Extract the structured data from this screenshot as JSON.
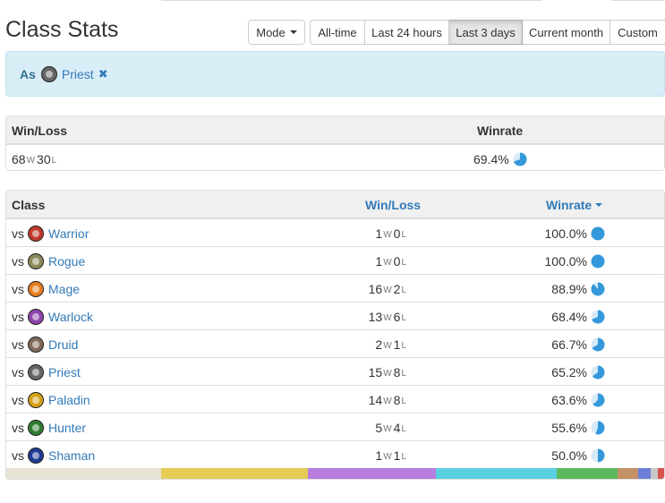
{
  "page_title": "Class Stats",
  "mode_button": "Mode",
  "ranges": [
    {
      "label": "All-time",
      "width": 62,
      "active": false
    },
    {
      "label": "Last 24 hours",
      "width": 94,
      "active": false
    },
    {
      "label": "Last 3 days",
      "width": 82,
      "active": true
    },
    {
      "label": "Current month",
      "width": 98,
      "active": false
    },
    {
      "label": "Custom",
      "width": 62,
      "active": false
    }
  ],
  "filter": {
    "as_label": "As",
    "class_name": "Priest",
    "remove_icon": "times-icon"
  },
  "summary": {
    "headers": {
      "winloss": "Win/Loss",
      "winrate": "Winrate"
    },
    "wins": "68",
    "losses": "30",
    "w_suffix": "W",
    "l_suffix": "L",
    "winrate": "69.4%",
    "winrate_value": 69.4
  },
  "table": {
    "headers": {
      "class": "Class",
      "winloss": "Win/Loss",
      "winrate": "Winrate"
    },
    "vs_label": "vs",
    "rows": [
      {
        "name": "Warrior",
        "color": "#c0392b",
        "wins": "1",
        "losses": "0",
        "winrate": "100.0%",
        "value": 100.0
      },
      {
        "name": "Rogue",
        "color": "#8a8a5a",
        "wins": "1",
        "losses": "0",
        "winrate": "100.0%",
        "value": 100.0
      },
      {
        "name": "Mage",
        "color": "#e67e22",
        "wins": "16",
        "losses": "2",
        "winrate": "88.9%",
        "value": 88.9
      },
      {
        "name": "Warlock",
        "color": "#8e44ad",
        "wins": "13",
        "losses": "6",
        "winrate": "68.4%",
        "value": 68.4
      },
      {
        "name": "Druid",
        "color": "#7f6a5a",
        "wins": "2",
        "losses": "1",
        "winrate": "66.7%",
        "value": 66.7
      },
      {
        "name": "Priest",
        "color": "#666666",
        "wins": "15",
        "losses": "8",
        "winrate": "65.2%",
        "value": 65.2
      },
      {
        "name": "Paladin",
        "color": "#d4a017",
        "wins": "14",
        "losses": "8",
        "winrate": "63.6%",
        "value": 63.6
      },
      {
        "name": "Hunter",
        "color": "#2e7d32",
        "wins": "5",
        "losses": "4",
        "winrate": "55.6%",
        "value": 55.6
      },
      {
        "name": "Shaman",
        "color": "#1f3a93",
        "wins": "1",
        "losses": "1",
        "winrate": "50.0%",
        "value": 50.0
      }
    ]
  },
  "distribution_bar": [
    {
      "color": "#e8e2d4",
      "share": 0.235
    },
    {
      "color": "#e5cc55",
      "share": 0.224
    },
    {
      "color": "#b77ee0",
      "share": 0.194
    },
    {
      "color": "#5bd0e3",
      "share": 0.184
    },
    {
      "color": "#5cb85c",
      "share": 0.092
    },
    {
      "color": "#c49066",
      "share": 0.031
    },
    {
      "color": "#6b7fd7",
      "share": 0.02
    },
    {
      "color": "#c8c8c8",
      "share": 0.01
    },
    {
      "color": "#d9534f",
      "share": 0.01
    }
  ],
  "pie_color": "#3498db"
}
